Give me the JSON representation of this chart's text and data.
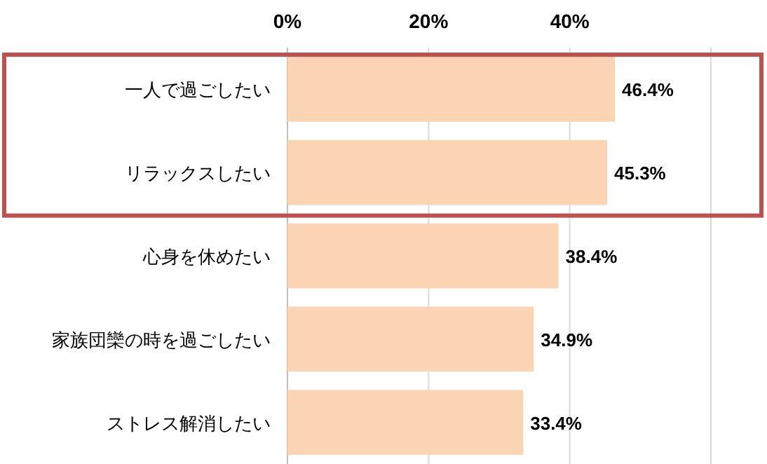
{
  "chart_data": {
    "type": "bar",
    "orientation": "horizontal",
    "categories": [
      "一人で過ごしたい",
      "リラックスしたい",
      "心身を休めたい",
      "家族団欒の時を過ごしたい",
      "ストレス解消したい"
    ],
    "values": [
      46.4,
      45.3,
      38.4,
      34.9,
      33.4
    ],
    "value_labels": [
      "46.4%",
      "45.3%",
      "38.4%",
      "34.9%",
      "33.4%"
    ],
    "color": "#fbd5b3",
    "xlim": [
      0,
      60
    ],
    "xticks": [
      {
        "value": 0,
        "label": "0%"
      },
      {
        "value": 20,
        "label": "20%"
      },
      {
        "value": 40,
        "label": "40%"
      },
      {
        "value": 60,
        "label": null
      }
    ],
    "grid": "x"
  }
}
